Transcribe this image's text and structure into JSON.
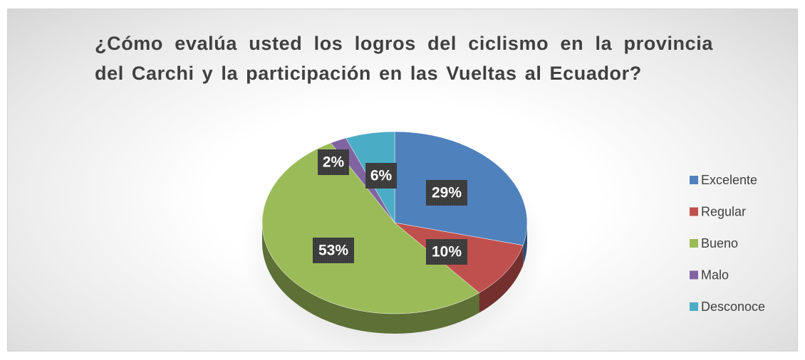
{
  "chart_data": {
    "type": "pie",
    "title": "¿Cómo evalúa usted los logros del ciclismo en la provincia del Carchi y la participación en las Vueltas al Ecuador?",
    "categories": [
      "Excelente",
      "Regular",
      "Bueno",
      "Malo",
      "Desconoce"
    ],
    "values": [
      29,
      10,
      53,
      2,
      6
    ],
    "value_labels": [
      "29%",
      "10%",
      "53%",
      "2%",
      "6%"
    ],
    "colors": [
      "#4f81bd",
      "#c0504d",
      "#9bbb59",
      "#8064a2",
      "#4bacc6"
    ],
    "legend": "right"
  }
}
